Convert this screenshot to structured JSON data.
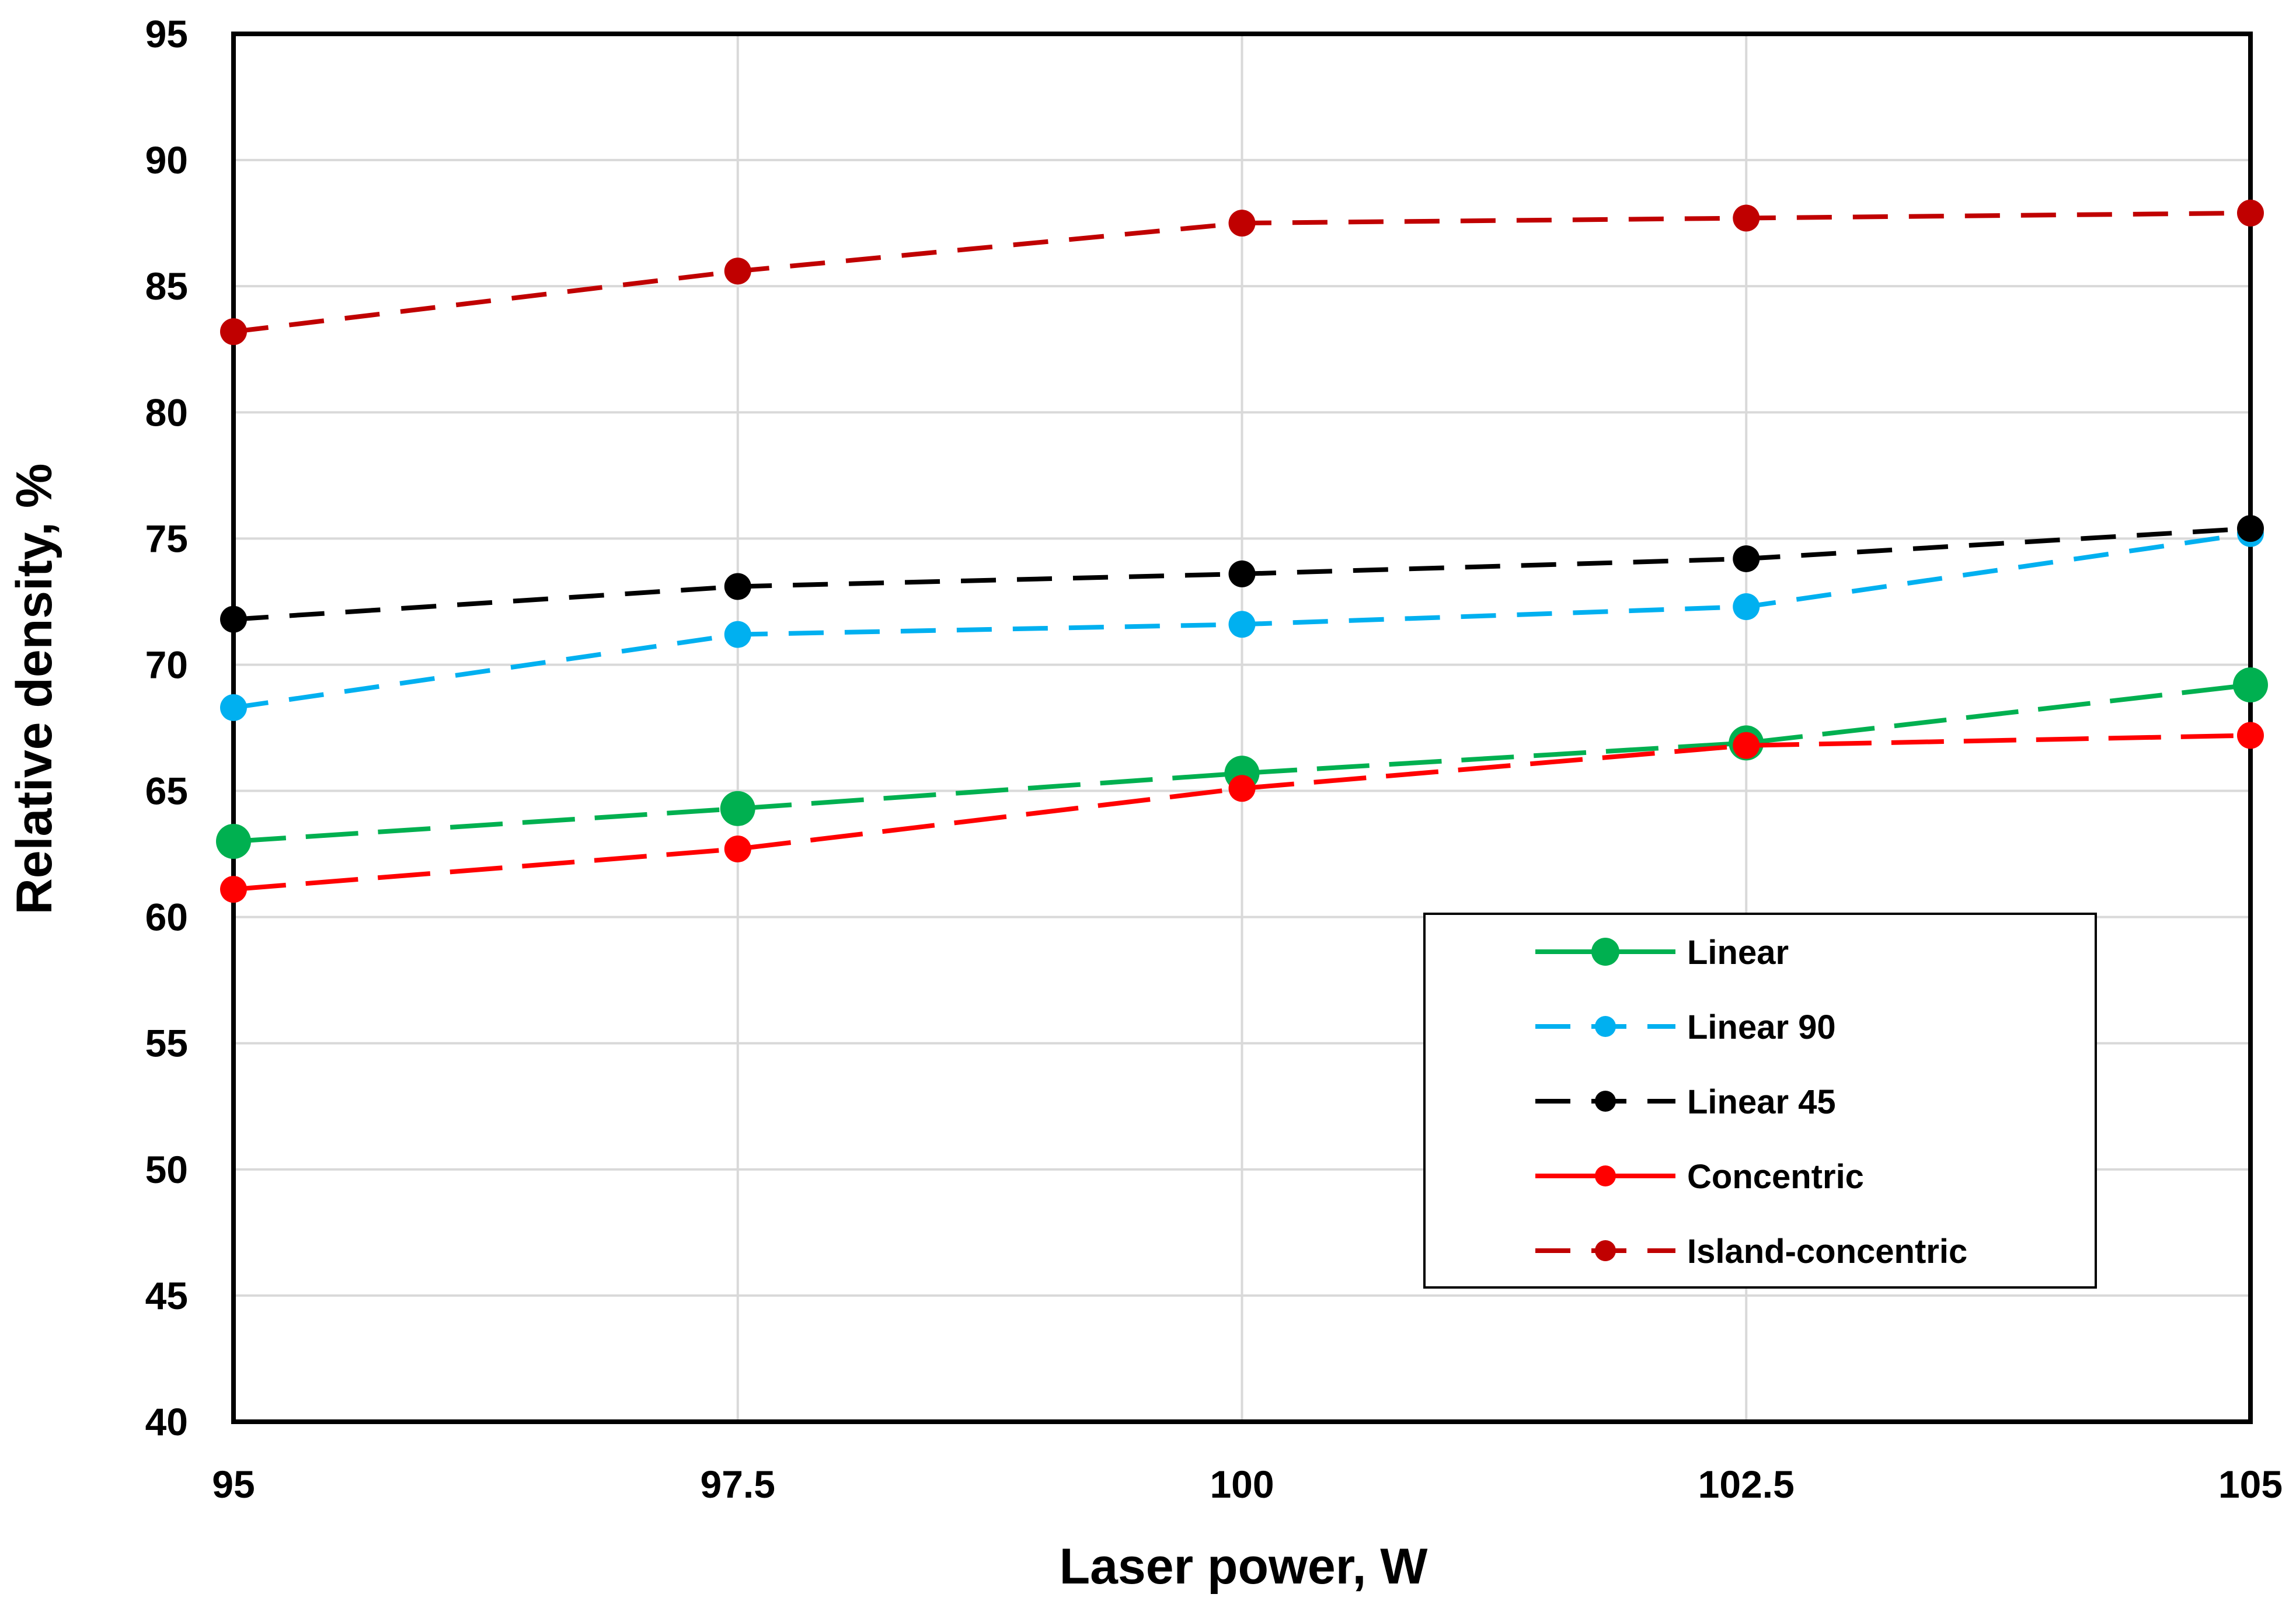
{
  "chart_data": {
    "type": "line",
    "title": "",
    "xlabel": "Laser power, W",
    "ylabel": "Relative density, %",
    "x": [
      95,
      97.5,
      100,
      102.5,
      105
    ],
    "x_tick_labels": [
      "95",
      "97.5",
      "100",
      "102.5",
      "105"
    ],
    "xlim": [
      95,
      105
    ],
    "y_ticks": [
      40,
      45,
      50,
      55,
      60,
      65,
      70,
      75,
      80,
      85,
      90,
      95
    ],
    "y_tick_labels": [
      "40",
      "45",
      "50",
      "55",
      "60",
      "65",
      "70",
      "75",
      "80",
      "85",
      "90",
      "95"
    ],
    "ylim": [
      40,
      95
    ],
    "grid": true,
    "legend_position": "lower-right",
    "series": [
      {
        "name": "Linear",
        "values": [
          63.0,
          64.3,
          65.7,
          66.9,
          69.2
        ],
        "color": "#00b050",
        "style": "long-dash",
        "marker": "large-circle"
      },
      {
        "name": "Linear 90",
        "values": [
          68.3,
          71.2,
          71.6,
          72.3,
          75.2
        ],
        "color": "#00b0f0",
        "style": "dash",
        "marker": "circle"
      },
      {
        "name": "Linear 45",
        "values": [
          71.8,
          73.1,
          73.6,
          74.2,
          75.4
        ],
        "color": "#000000",
        "style": "dash",
        "marker": "circle"
      },
      {
        "name": "Concentric",
        "values": [
          61.1,
          62.7,
          65.1,
          66.8,
          67.2
        ],
        "color": "#ff0000",
        "style": "long-dash",
        "marker": "circle"
      },
      {
        "name": "Island-concentric",
        "values": [
          83.2,
          85.6,
          87.5,
          87.7,
          87.9
        ],
        "color": "#c00000",
        "style": "dash",
        "marker": "circle"
      }
    ]
  }
}
